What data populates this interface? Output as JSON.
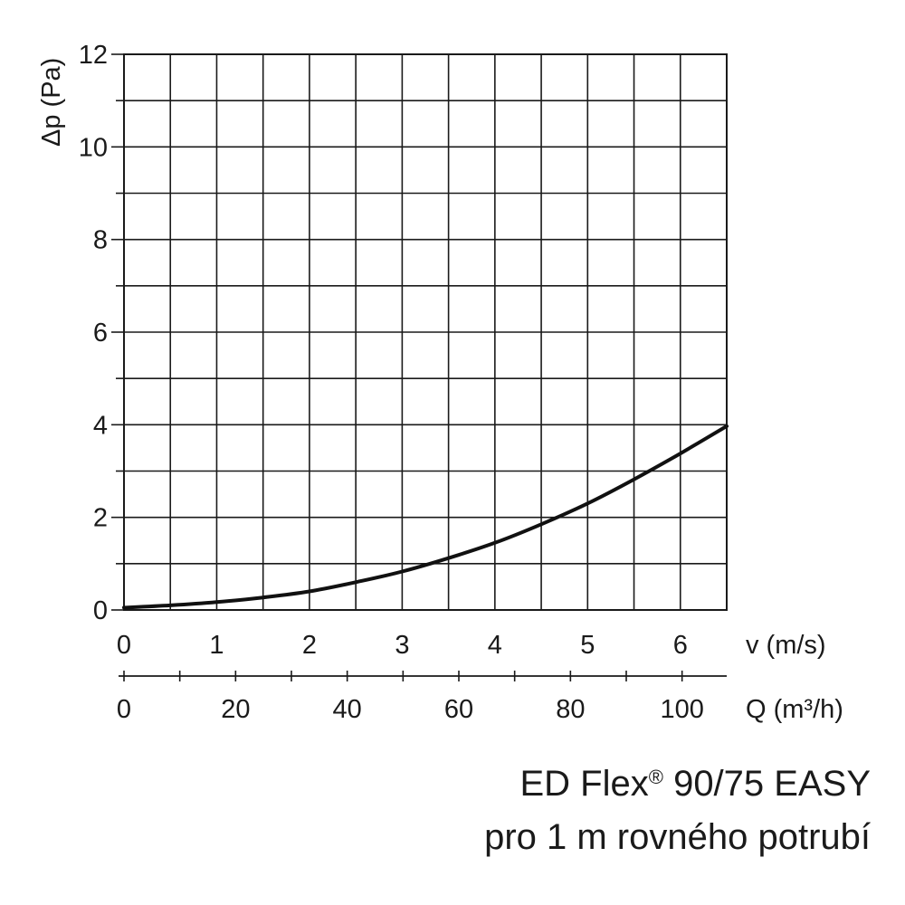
{
  "chart_data": {
    "type": "line",
    "title": "",
    "ylabel": "Δp (Pa)",
    "xlabel": "v (m/s)",
    "x2label": "Q (m³/h)",
    "ylim": [
      0,
      12
    ],
    "xlim": [
      0,
      6.5
    ],
    "x2lim": [
      0,
      108
    ],
    "yticks": [
      "0",
      "2",
      "4",
      "6",
      "8",
      "10",
      "12"
    ],
    "xticks": [
      "0",
      "1",
      "2",
      "3",
      "4",
      "5",
      "6"
    ],
    "x2ticks": [
      "0",
      "20",
      "40",
      "60",
      "80",
      "100"
    ],
    "grid": true,
    "series": [
      {
        "x": [
          0,
          0.5,
          1,
          1.5,
          2,
          2.5,
          3,
          3.5,
          4,
          4.5,
          5,
          5.5,
          6,
          6.5
        ],
        "y": [
          0.05,
          0.1,
          0.17,
          0.27,
          0.4,
          0.6,
          0.83,
          1.12,
          1.45,
          1.85,
          2.3,
          2.82,
          3.38,
          3.97
        ]
      }
    ]
  },
  "caption": {
    "line1_main": "ED Flex",
    "line1_mark": "®",
    "line1_rest": " 90/75 EASY",
    "line2": "pro 1 m rovného potrubí"
  },
  "colors": {
    "line": "#111111",
    "grid": "#1a1a1a",
    "background": "#ffffff"
  }
}
